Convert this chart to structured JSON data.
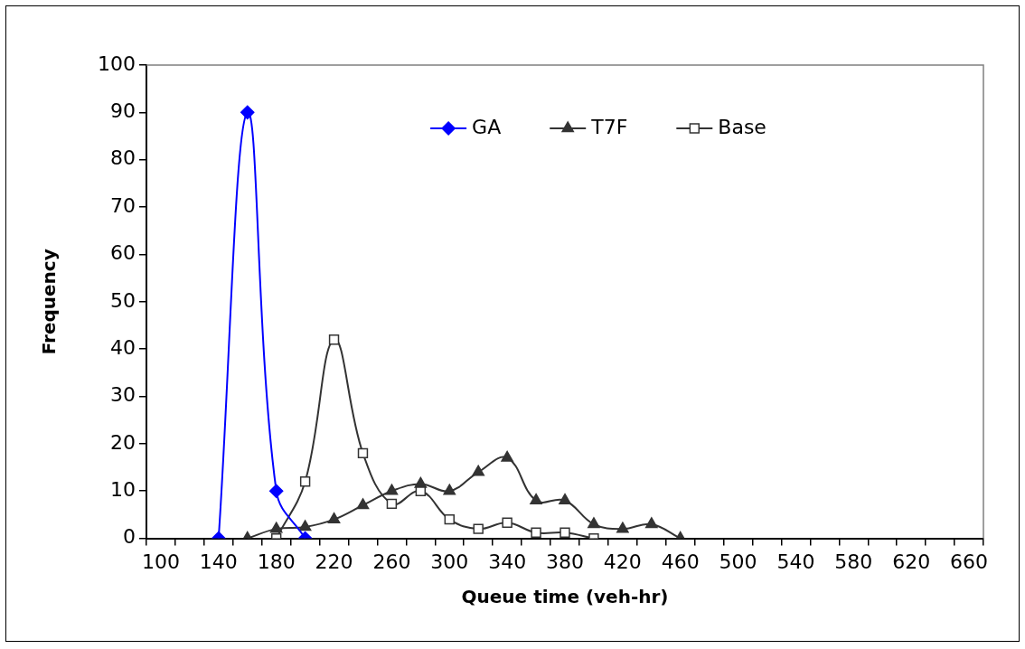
{
  "chart_data": {
    "type": "line",
    "xlabel": "Queue time (veh-hr)",
    "ylabel": "Frequency",
    "categories": [
      "100",
      null,
      "140",
      null,
      "180",
      null,
      "220",
      null,
      "260",
      null,
      "300",
      null,
      "340",
      null,
      "380",
      null,
      "420",
      null,
      "460",
      null,
      "500",
      null,
      "540",
      null,
      "580",
      null,
      "620",
      null,
      "660"
    ],
    "series": [
      {
        "name": "GA",
        "color": "#0000ff",
        "marker": "diamond",
        "values": [
          null,
          null,
          0,
          90,
          10,
          0,
          null,
          null,
          null,
          null,
          null,
          null,
          null,
          null,
          null,
          null,
          null,
          null,
          null,
          null,
          null,
          null,
          null,
          null,
          null,
          null,
          null,
          null,
          null
        ]
      },
      {
        "name": "T7F",
        "color": "#333333",
        "marker": "triangle",
        "values": [
          null,
          null,
          null,
          0,
          2,
          2.4,
          4,
          7,
          10,
          11.5,
          10,
          14,
          17,
          8,
          8,
          3,
          2,
          3,
          0,
          null,
          null,
          null,
          null,
          null,
          null,
          null,
          null,
          null,
          null
        ]
      },
      {
        "name": "Base",
        "color": "#333333",
        "marker": "square",
        "values": [
          null,
          null,
          null,
          null,
          0,
          12,
          42,
          18,
          7.3,
          10,
          4,
          2,
          3.3,
          1.2,
          1.2,
          0,
          null,
          null,
          null,
          null,
          null,
          null,
          null,
          null,
          null,
          null,
          null,
          null,
          null
        ]
      }
    ],
    "ylim": [
      0,
      100
    ],
    "yticks": [
      0,
      10,
      20,
      30,
      40,
      50,
      60,
      70,
      80,
      90,
      100
    ],
    "grid": false,
    "legend": "top",
    "line_style": "solid"
  }
}
